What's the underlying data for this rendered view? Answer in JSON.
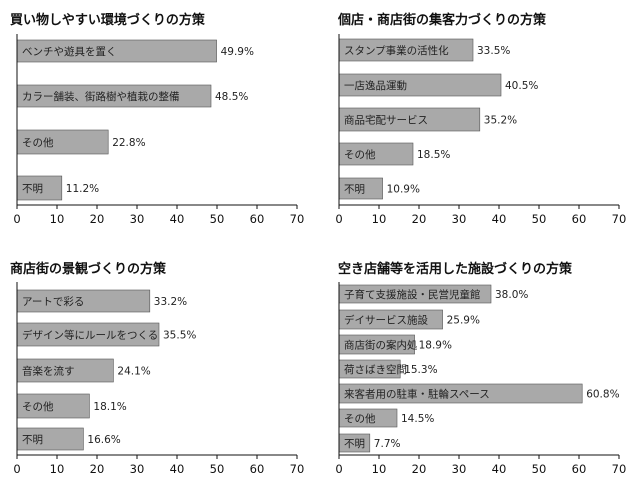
{
  "chart_data": [
    {
      "type": "bar",
      "orientation": "horizontal",
      "title": "買い物しやすい環境づくりの方策",
      "categories": [
        "ベンチや遊具を置く",
        "カラー舗装、街路樹や植栽の整備",
        "その他",
        "不明"
      ],
      "values": [
        49.9,
        48.5,
        22.8,
        11.2
      ],
      "value_labels": [
        "49.9%",
        "48.5%",
        "22.8%",
        "11.2%"
      ],
      "xlim": [
        0,
        70
      ],
      "xticks": [
        0,
        10,
        20,
        30,
        40,
        50,
        60,
        70
      ],
      "xtick_labels": [
        "0",
        "10",
        "20",
        "30",
        "40",
        "50",
        "60",
        "70"
      ],
      "grid": false
    },
    {
      "type": "bar",
      "orientation": "horizontal",
      "title": "個店・商店街の集客力づくりの方策",
      "categories": [
        "スタンプ事業の活性化",
        "一店逸品運動",
        "商品宅配サービス",
        "その他",
        "不明"
      ],
      "values": [
        33.5,
        40.5,
        35.2,
        18.5,
        10.9
      ],
      "value_labels": [
        "33.5%",
        "40.5%",
        "35.2%",
        "18.5%",
        "10.9%"
      ],
      "xlim": [
        0,
        70
      ],
      "xticks": [
        0,
        10,
        20,
        30,
        40,
        50,
        60,
        70
      ],
      "xtick_labels": [
        "0",
        "10",
        "20",
        "30",
        "40",
        "50",
        "60",
        "70"
      ],
      "grid": false
    },
    {
      "type": "bar",
      "orientation": "horizontal",
      "title": "商店街の景観づくりの方策",
      "categories": [
        "アートで彩る",
        "デザイン等にルールをつくる",
        "音楽を流す",
        "その他",
        "不明"
      ],
      "values": [
        33.2,
        35.5,
        24.1,
        18.1,
        16.6
      ],
      "value_labels": [
        "33.2%",
        "35.5%",
        "24.1%",
        "18.1%",
        "16.6%"
      ],
      "xlim": [
        0,
        70
      ],
      "xticks": [
        0,
        10,
        20,
        30,
        40,
        50,
        60,
        70
      ],
      "xtick_labels": [
        "0",
        "10",
        "20",
        "30",
        "40",
        "50",
        "60",
        "70"
      ],
      "grid": false
    },
    {
      "type": "bar",
      "orientation": "horizontal",
      "title": "空き店舗等を活用した施設づくりの方策",
      "categories": [
        "子育て支援施設・民営児童館",
        "デイサービス施設",
        "商店街の案内処",
        "荷さばき空間",
        "来客者用の駐車・駐輪スペース",
        "その他",
        "不明"
      ],
      "values": [
        38.0,
        25.9,
        18.9,
        15.3,
        60.8,
        14.5,
        7.7
      ],
      "value_labels": [
        "38.0%",
        "25.9%",
        "18.9%",
        "15.3%",
        "60.8%",
        "14.5%",
        "7.7%"
      ],
      "xlim": [
        0,
        70
      ],
      "xticks": [
        0,
        10,
        20,
        30,
        40,
        50,
        60,
        70
      ],
      "xtick_labels": [
        "0",
        "10",
        "20",
        "30",
        "40",
        "50",
        "60",
        "70"
      ],
      "grid": false
    }
  ],
  "colors": {
    "bar_fill": "#a9a9a9",
    "bar_stroke": "#555555",
    "axis": "#111111"
  }
}
